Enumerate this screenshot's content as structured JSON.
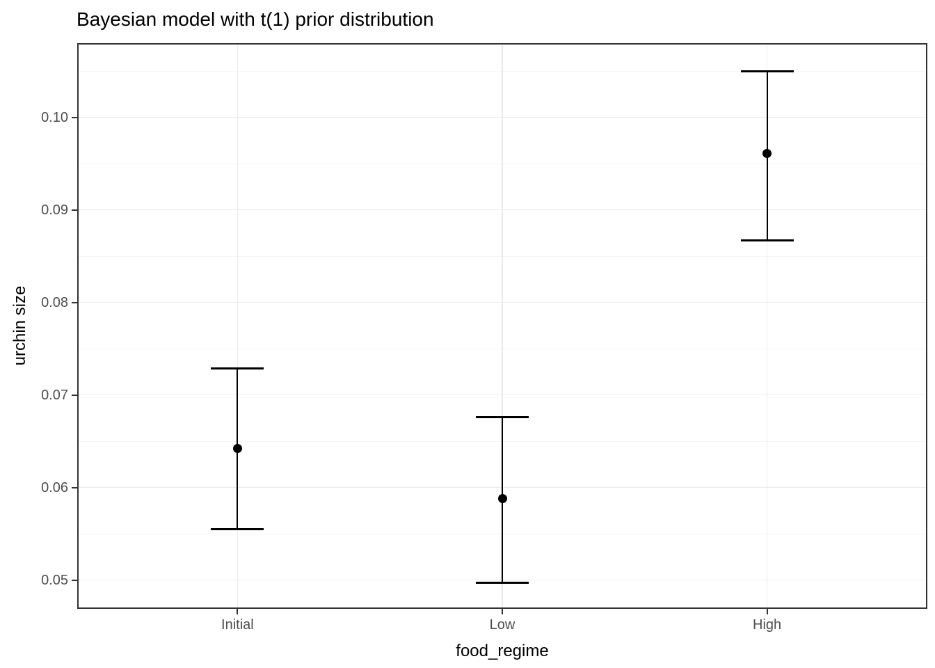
{
  "figure": {
    "title": "Bayesian model with t(1) prior distribution"
  },
  "chart_data": {
    "type": "scatter",
    "subtype": "pointrange-errorbar",
    "title": "Bayesian model with t(1) prior distribution",
    "xlabel": "food_regime",
    "ylabel": "urchin size",
    "categories": [
      "Initial",
      "Low",
      "High"
    ],
    "points": [
      {
        "category": "Initial",
        "mean": 0.0642,
        "lower": 0.0555,
        "upper": 0.0729
      },
      {
        "category": "Low",
        "mean": 0.0588,
        "lower": 0.0497,
        "upper": 0.0676
      },
      {
        "category": "High",
        "mean": 0.0961,
        "lower": 0.0867,
        "upper": 0.105
      }
    ],
    "yticks": [
      0.05,
      0.06,
      0.07,
      0.08,
      0.09,
      0.1
    ],
    "ytick_labels": [
      "0.05",
      "0.06",
      "0.07",
      "0.08",
      "0.09",
      "0.10"
    ],
    "ylim": [
      0.04704,
      0.10787
    ],
    "grid": "horizontal major at 0.01 steps, horizontal minor at 0.005 steps, vertical major at each category",
    "legend": "none",
    "style": {
      "background": "#ffffff",
      "panel_border": "#333333",
      "grid_major": "#ebebeb",
      "grid_minor": "#f5f5f5",
      "tick_color": "#333333",
      "tick_label_color": "#4d4d4d",
      "title_color": "#000000",
      "data_color": "#000000"
    }
  }
}
